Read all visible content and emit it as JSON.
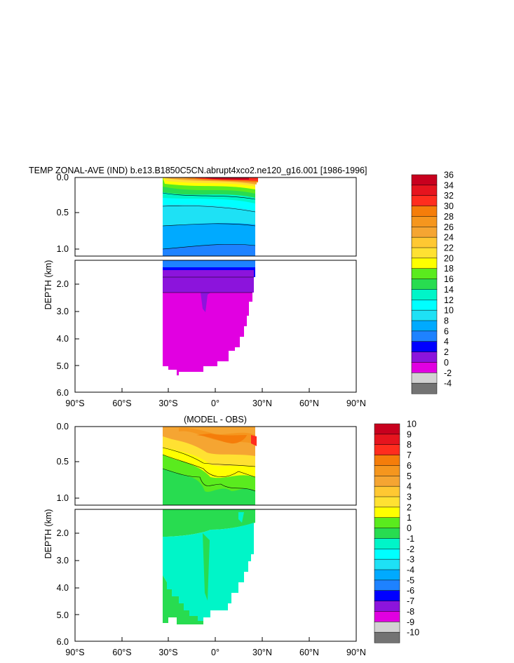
{
  "chart_data": [
    {
      "type": "heatmap",
      "title": "TEMP ZONAL-AVE (IND) b.e13.B1850C5CN.abrupt4xco2.ne120_g16.001 [1986-1996]",
      "ylabel": "DEPTH (km)",
      "x_ticks": [
        "90°S",
        "60°S",
        "30°S",
        "0°",
        "30°N",
        "60°N",
        "90°N"
      ],
      "xlim": [
        -90,
        90
      ],
      "upper_ticks": [
        "0.0",
        "0.5",
        "1.0"
      ],
      "lower_ticks": [
        "2.0",
        "3.0",
        "4.0",
        "5.0",
        "6.0"
      ],
      "ylim": [
        0,
        6
      ],
      "colorbar": {
        "labels": [
          "36",
          "34",
          "32",
          "30",
          "28",
          "26",
          "24",
          "22",
          "20",
          "18",
          "16",
          "14",
          "12",
          "10",
          "8",
          "6",
          "4",
          "2",
          "0",
          "-2",
          "-4"
        ],
        "colors": [
          "#c8001e",
          "#e6141e",
          "#ff2d1e",
          "#f57d0a",
          "#f5961e",
          "#f5a532",
          "#ffc832",
          "#ffe132",
          "#ffff00",
          "#5aeb1e",
          "#28dc50",
          "#00f5c8",
          "#00ffff",
          "#1ee1f5",
          "#00aaff",
          "#1e82ff",
          "#0000ff",
          "#8c14dc",
          "#e100e1",
          "#d2d2d2",
          "#737373"
        ]
      }
    },
    {
      "type": "heatmap",
      "title": "(MODEL - OBS)",
      "ylabel": "DEPTH (km)",
      "x_ticks": [
        "90°S",
        "60°S",
        "30°S",
        "0°",
        "30°N",
        "60°N",
        "90°N"
      ],
      "xlim": [
        -90,
        90
      ],
      "upper_ticks": [
        "0.0",
        "0.5",
        "1.0"
      ],
      "lower_ticks": [
        "2.0",
        "3.0",
        "4.0",
        "5.0",
        "6.0"
      ],
      "ylim": [
        0,
        6
      ],
      "colorbar": {
        "labels": [
          "10",
          "9",
          "8",
          "7",
          "6",
          "5",
          "4",
          "3",
          "2",
          "1",
          "0",
          "-1",
          "-2",
          "-3",
          "-4",
          "-5",
          "-6",
          "-7",
          "-8",
          "-9",
          "-10"
        ],
        "colors": [
          "#c8001e",
          "#e6141e",
          "#ff2d1e",
          "#f57d0a",
          "#f5961e",
          "#f5a532",
          "#ffc832",
          "#ffe132",
          "#ffff00",
          "#5aeb1e",
          "#28dc50",
          "#00f5c8",
          "#00ffff",
          "#1ee1f5",
          "#00aaff",
          "#1e82ff",
          "#0000ff",
          "#8c14dc",
          "#e100e1",
          "#d2d2d2",
          "#737373"
        ]
      }
    }
  ]
}
